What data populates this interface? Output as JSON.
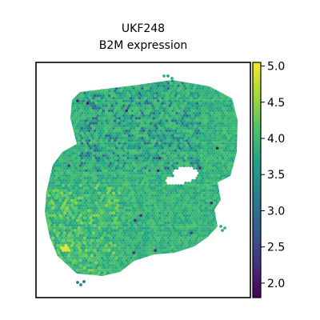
{
  "chart_data": {
    "type": "scatter",
    "title": "UKF248",
    "subtitle": "B2M expression",
    "xlabel": "",
    "ylabel": "",
    "grid": false,
    "legend": "none",
    "colorbar": {
      "label": "",
      "min": 1.8,
      "max": 5.05,
      "ticks": [
        2.0,
        2.5,
        3.0,
        3.5,
        4.0,
        4.5,
        5.0
      ],
      "tick_labels": [
        "2.0",
        "2.5",
        "3.0",
        "3.5",
        "4.0",
        "4.5",
        "5.0"
      ],
      "colormap": "viridis",
      "colormap_stops": [
        "#440154",
        "#46327e",
        "#365c8d",
        "#277f8e",
        "#1fa187",
        "#4ac16d",
        "#a0da39",
        "#fde725"
      ]
    },
    "notes": "Spatial transcriptomics spot map; each spot colored by B2M expression. Bulk of tissue ~3.6-4.1, scattered low spots ~2.2-3.0 in upper-middle region, small high spots ~4.5-4.8 in lower-left.",
    "spot_value_summary": {
      "typical": 3.9,
      "low_region_mean": 3.3,
      "high_region_mean": 4.3,
      "min_observed": 2.0,
      "max_observed": 4.9
    }
  }
}
